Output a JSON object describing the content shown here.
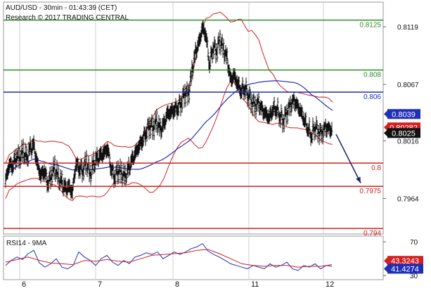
{
  "header": {
    "title": "AUD/USD - 30min - 01:43:39 (CET)",
    "subtitle": "Research © 2017 TRADING CENTRAL"
  },
  "chart_data": [
    {
      "type": "candlestick",
      "ylim": [
        0.7932,
        0.814
      ],
      "y_ticks": [
        "0.8119",
        "0.8067",
        "0.8016",
        "0.7964"
      ],
      "x_ticks": [
        "6",
        "7",
        "8",
        "11",
        "12"
      ],
      "levels": [
        {
          "label": "0.8125",
          "value": 0.8125,
          "color": "#2e8b2e"
        },
        {
          "label": "0.808",
          "value": 0.808,
          "color": "#2e8b2e"
        },
        {
          "label": "0.806",
          "value": 0.806,
          "color": "#1f2fb8"
        },
        {
          "label": "0.8",
          "value": 0.7996,
          "color": "#d42020"
        },
        {
          "label": "0.7975",
          "value": 0.7975,
          "color": "#d42020"
        },
        {
          "label": "0.794",
          "value": 0.7937,
          "color": "#d42020"
        }
      ],
      "price_tags": [
        {
          "label": "0.8039",
          "value": 0.8039,
          "bg": "#1f2fb8",
          "fg": "#ffffff"
        },
        {
          "label": "0.80282",
          "value": 0.80282,
          "bg": "#d42020",
          "fg": "#ffffff"
        },
        {
          "label": "0.8025",
          "value": 0.8025,
          "bg": "#111111",
          "fg": "#ffffff"
        }
      ],
      "close_path": [
        [
          0,
          0.798
        ],
        [
          5,
          0.7995
        ],
        [
          10,
          0.7994
        ],
        [
          15,
          0.8002
        ],
        [
          20,
          0.8001
        ],
        [
          25,
          0.8006
        ],
        [
          30,
          0.7999
        ],
        [
          35,
          0.8008
        ],
        [
          40,
          0.8011
        ],
        [
          45,
          0.7995
        ],
        [
          50,
          0.7985
        ],
        [
          55,
          0.799
        ],
        [
          60,
          0.7978
        ],
        [
          65,
          0.7985
        ],
        [
          70,
          0.7992
        ],
        [
          75,
          0.7982
        ],
        [
          80,
          0.7977
        ],
        [
          85,
          0.7972
        ],
        [
          90,
          0.7974
        ],
        [
          95,
          0.797
        ],
        [
          100,
          0.7996
        ],
        [
          105,
          0.7992
        ],
        [
          110,
          0.799
        ],
        [
          115,
          0.7998
        ],
        [
          120,
          0.7985
        ],
        [
          125,
          0.7994
        ],
        [
          130,
          0.7999
        ],
        [
          135,
          0.8002
        ],
        [
          140,
          0.8005
        ],
        [
          145,
          0.801
        ],
        [
          150,
          0.7992
        ],
        [
          155,
          0.7984
        ],
        [
          160,
          0.799
        ],
        [
          165,
          0.7987
        ],
        [
          170,
          0.7983
        ],
        [
          175,
          0.799
        ],
        [
          180,
          0.7998
        ],
        [
          185,
          0.8005
        ],
        [
          190,
          0.8012
        ],
        [
          195,
          0.8018
        ],
        [
          200,
          0.8025
        ],
        [
          205,
          0.8031
        ],
        [
          210,
          0.8028
        ],
        [
          215,
          0.8034
        ],
        [
          220,
          0.8025
        ],
        [
          225,
          0.803
        ],
        [
          230,
          0.804
        ],
        [
          235,
          0.8042
        ],
        [
          240,
          0.8045
        ],
        [
          245,
          0.8047
        ],
        [
          250,
          0.8052
        ],
        [
          255,
          0.806
        ],
        [
          260,
          0.8058
        ],
        [
          265,
          0.8078
        ],
        [
          270,
          0.8095
        ],
        [
          275,
          0.8104
        ],
        [
          280,
          0.8118
        ],
        [
          285,
          0.8112
        ],
        [
          290,
          0.8085
        ],
        [
          295,
          0.8102
        ],
        [
          300,
          0.8098
        ],
        [
          305,
          0.8108
        ],
        [
          310,
          0.8098
        ],
        [
          315,
          0.809
        ],
        [
          320,
          0.807
        ],
        [
          325,
          0.8075
        ],
        [
          330,
          0.8068
        ],
        [
          335,
          0.8062
        ],
        [
          340,
          0.8065
        ],
        [
          345,
          0.8058
        ],
        [
          350,
          0.8052
        ],
        [
          355,
          0.8048
        ],
        [
          360,
          0.805
        ],
        [
          365,
          0.8043
        ],
        [
          370,
          0.804
        ],
        [
          375,
          0.8037
        ],
        [
          380,
          0.8045
        ],
        [
          385,
          0.8046
        ],
        [
          390,
          0.804
        ],
        [
          395,
          0.8035
        ],
        [
          400,
          0.8042
        ],
        [
          405,
          0.8048
        ],
        [
          410,
          0.8052
        ],
        [
          415,
          0.8047
        ],
        [
          420,
          0.8042
        ],
        [
          425,
          0.8035
        ],
        [
          430,
          0.8028
        ],
        [
          435,
          0.8022
        ],
        [
          440,
          0.803
        ],
        [
          445,
          0.8025
        ],
        [
          450,
          0.8023
        ],
        [
          455,
          0.8028
        ],
        [
          460,
          0.8026
        ],
        [
          465,
          0.8025
        ]
      ],
      "forecast_arrow": {
        "from": [
          470,
          0.8022
        ],
        "to": [
          505,
          0.7978
        ]
      }
    },
    {
      "type": "line",
      "title": "RSI14 - 9MA",
      "ylim": [
        26,
        76
      ],
      "y_ticks": [
        "70",
        "30"
      ],
      "price_tags": [
        {
          "label": "43.3243",
          "value": 43.3243,
          "bg": "#d42020",
          "fg": "#ffffff"
        },
        {
          "label": "41.4274",
          "value": 41.4274,
          "bg": "#1f2fb8",
          "fg": "#ffffff"
        }
      ],
      "rsi_path": [
        [
          0,
          42
        ],
        [
          8,
          48
        ],
        [
          16,
          52
        ],
        [
          24,
          49
        ],
        [
          32,
          56
        ],
        [
          40,
          60
        ],
        [
          48,
          45
        ],
        [
          56,
          40
        ],
        [
          64,
          44
        ],
        [
          72,
          50
        ],
        [
          80,
          40
        ],
        [
          88,
          38
        ],
        [
          96,
          42
        ],
        [
          104,
          58
        ],
        [
          112,
          52
        ],
        [
          120,
          48
        ],
        [
          128,
          42
        ],
        [
          136,
          50
        ],
        [
          144,
          54
        ],
        [
          152,
          46
        ],
        [
          160,
          42
        ],
        [
          168,
          48
        ],
        [
          176,
          44
        ],
        [
          184,
          52
        ],
        [
          192,
          54
        ],
        [
          200,
          57
        ],
        [
          208,
          55
        ],
        [
          216,
          58
        ],
        [
          224,
          50
        ],
        [
          232,
          54
        ],
        [
          240,
          58
        ],
        [
          248,
          55
        ],
        [
          256,
          58
        ],
        [
          264,
          62
        ],
        [
          272,
          64
        ],
        [
          280,
          68
        ],
        [
          288,
          59
        ],
        [
          296,
          55
        ],
        [
          304,
          52
        ],
        [
          312,
          48
        ],
        [
          320,
          44
        ],
        [
          328,
          42
        ],
        [
          336,
          40
        ],
        [
          344,
          38
        ],
        [
          352,
          42
        ],
        [
          360,
          40
        ],
        [
          368,
          38
        ],
        [
          376,
          44
        ],
        [
          384,
          40
        ],
        [
          392,
          42
        ],
        [
          400,
          46
        ],
        [
          408,
          38
        ],
        [
          416,
          36
        ],
        [
          424,
          42
        ],
        [
          432,
          40
        ],
        [
          440,
          44
        ],
        [
          448,
          38
        ],
        [
          456,
          42
        ],
        [
          464,
          41
        ]
      ],
      "ma_path": [
        [
          0,
          46
        ],
        [
          16,
          49
        ],
        [
          32,
          52
        ],
        [
          48,
          48
        ],
        [
          64,
          45
        ],
        [
          80,
          44
        ],
        [
          96,
          43
        ],
        [
          112,
          48
        ],
        [
          128,
          47
        ],
        [
          144,
          49
        ],
        [
          160,
          47
        ],
        [
          176,
          46
        ],
        [
          192,
          50
        ],
        [
          208,
          54
        ],
        [
          224,
          55
        ],
        [
          240,
          56
        ],
        [
          256,
          57
        ],
        [
          272,
          60
        ],
        [
          288,
          61
        ],
        [
          304,
          56
        ],
        [
          320,
          50
        ],
        [
          336,
          44
        ],
        [
          352,
          42
        ],
        [
          368,
          41
        ],
        [
          384,
          42
        ],
        [
          400,
          42
        ],
        [
          416,
          40
        ],
        [
          432,
          41
        ],
        [
          448,
          41
        ],
        [
          464,
          43
        ]
      ]
    }
  ]
}
